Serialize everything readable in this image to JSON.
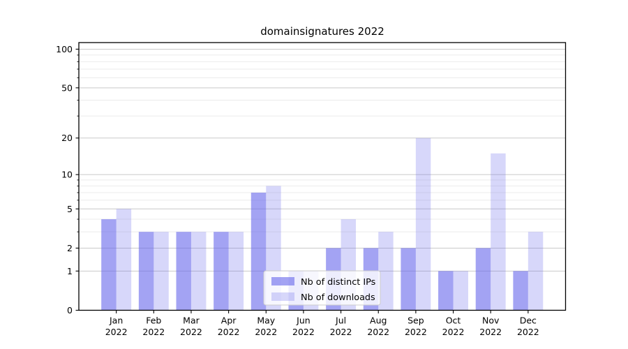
{
  "chart_data": {
    "type": "bar",
    "title": "domainsignatures 2022",
    "categories": [
      "Jan 2022",
      "Feb 2022",
      "Mar 2022",
      "Apr 2022",
      "May 2022",
      "Jun 2022",
      "Jul 2022",
      "Aug 2022",
      "Sep 2022",
      "Oct 2022",
      "Nov 2022",
      "Dec 2022"
    ],
    "series": [
      {
        "name": "Nb of distinct IPs",
        "key": "distinct-ips",
        "values": [
          4,
          3,
          3,
          3,
          7,
          1,
          2,
          2,
          2,
          1,
          2,
          1
        ]
      },
      {
        "name": "Nb of downloads",
        "key": "downloads",
        "values": [
          5,
          3,
          3,
          3,
          8,
          1,
          4,
          3,
          20,
          1,
          15,
          3
        ]
      }
    ],
    "yscale": "log1p",
    "y_ticks": [
      0,
      1,
      2,
      5,
      10,
      20,
      50,
      100
    ],
    "y_minor_ticks": [
      3,
      4,
      6,
      7,
      8,
      9,
      30,
      40,
      60,
      70,
      80,
      90
    ],
    "ylim_top_value": 113,
    "grid": true,
    "legend_position": "lower center",
    "colors": {
      "bar_base": "#6666eb",
      "alpha_series_0": 0.6,
      "alpha_series_1": 0.26,
      "grid_major": "#c9c9c9",
      "grid_minor": "#ebebeb",
      "axis": "#000000",
      "text": "#000000",
      "legend_border": "#cccccc",
      "legend_bg": "rgba(255,255,255,0.8)"
    }
  }
}
